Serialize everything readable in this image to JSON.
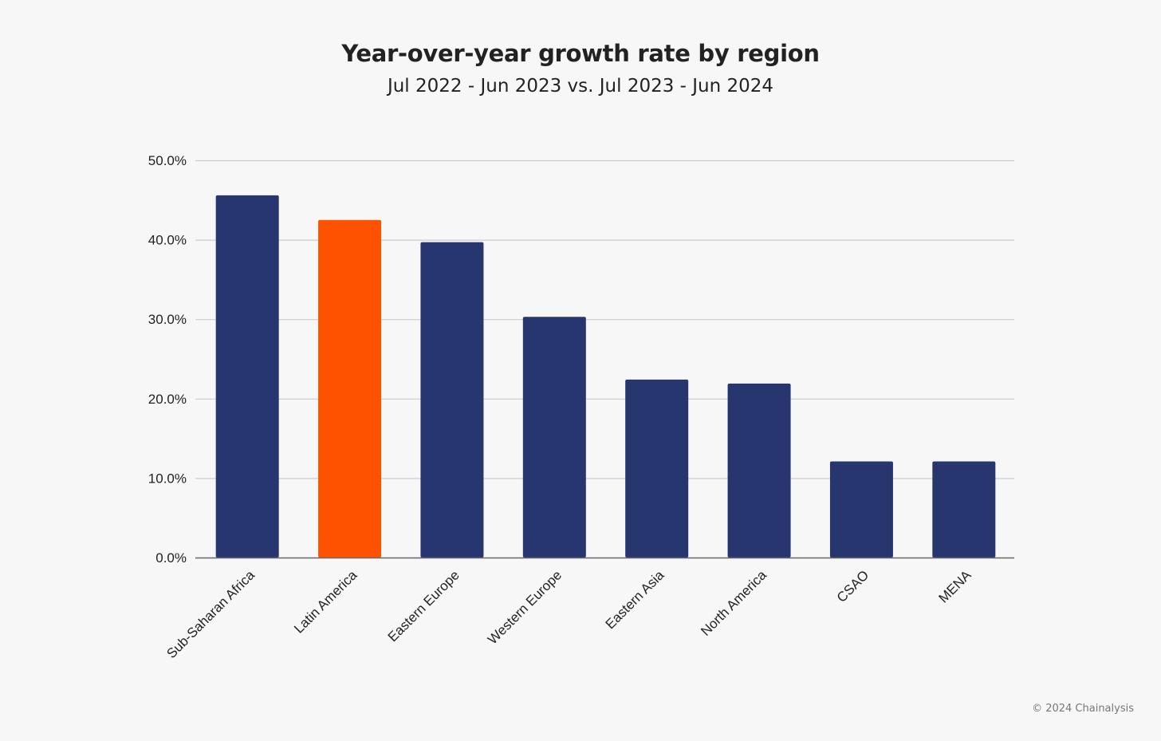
{
  "chart_data": {
    "type": "bar",
    "title": "Year-over-year growth rate by region",
    "subtitle": "Jul 2022 - Jun 2023 vs. Jul 2023 - Jun 2024",
    "categories": [
      "Sub-Saharan Africa",
      "Latin America",
      "Eastern Europe",
      "Western Europe",
      "Eastern Asia",
      "North America",
      "CSAO",
      "MENA"
    ],
    "values": [
      45.6,
      42.5,
      39.7,
      30.3,
      22.4,
      21.9,
      12.1,
      12.1
    ],
    "ylim": [
      0,
      50
    ],
    "yticks": [
      "0.0%",
      "10.0%",
      "20.0%",
      "30.0%",
      "40.0%",
      "50.0%"
    ],
    "grid": true,
    "xlabel": "",
    "ylabel": "",
    "bar_color": "#283670",
    "highlight_color": "#ff5200",
    "highlight_index": 1
  },
  "footer": {
    "copyright": "© 2024 Chainalysis"
  }
}
